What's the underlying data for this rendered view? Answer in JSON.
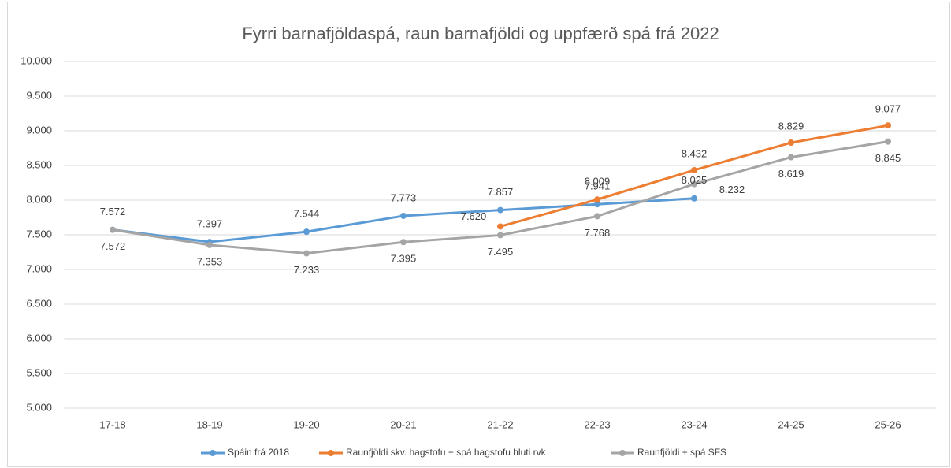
{
  "chart_data": {
    "type": "line",
    "title": "Fyrri barnafjöldaspá, raun barnafjöldi og uppfærð spá frá 2022",
    "categories": [
      "17-18",
      "18-19",
      "19-20",
      "20-21",
      "21-22",
      "22-23",
      "23-24",
      "24-25",
      "25-26"
    ],
    "series": [
      {
        "name": "Spáin frá 2018",
        "color": "#5b9bd5",
        "values": [
          7572,
          7397,
          7544,
          7773,
          7857,
          7941,
          8025,
          null,
          null
        ],
        "value_labels": [
          "7.572",
          "7.397",
          "7.544",
          "7.773",
          "7.857",
          "7.941",
          "8.025",
          null,
          null
        ]
      },
      {
        "name": "Raunfjöldi skv. hagstofu + spá hagstofu hluti rvk",
        "color": "#ed7d31",
        "values": [
          null,
          null,
          null,
          null,
          7620,
          8009,
          8432,
          8829,
          9077
        ],
        "value_labels": [
          null,
          null,
          null,
          null,
          "7.620",
          "8.009",
          "8.432",
          "8.829",
          "9.077"
        ]
      },
      {
        "name": "Raunfjöldi + spá SFS",
        "color": "#a5a5a5",
        "values": [
          7572,
          7353,
          7233,
          7395,
          7495,
          7768,
          8232,
          8619,
          8845
        ],
        "value_labels": [
          "7.572",
          "7.353",
          "7.233",
          "7.395",
          "7.495",
          "7.768",
          "8.232",
          "8.619",
          "8.845"
        ]
      }
    ],
    "ylim": [
      5000,
      10000
    ],
    "yticks": [
      {
        "value": 5000,
        "label": "5.000"
      },
      {
        "value": 5500,
        "label": "5.500"
      },
      {
        "value": 6000,
        "label": "6.000"
      },
      {
        "value": 6500,
        "label": "6.500"
      },
      {
        "value": 7000,
        "label": "7.000"
      },
      {
        "value": 7500,
        "label": "7.500"
      },
      {
        "value": 8000,
        "label": "8.000"
      },
      {
        "value": 8500,
        "label": "8.500"
      },
      {
        "value": 9000,
        "label": "9.000"
      },
      {
        "value": 9500,
        "label": "9.500"
      },
      {
        "value": 10000,
        "label": "10.000"
      }
    ],
    "grid": true,
    "legend": "bottom"
  }
}
